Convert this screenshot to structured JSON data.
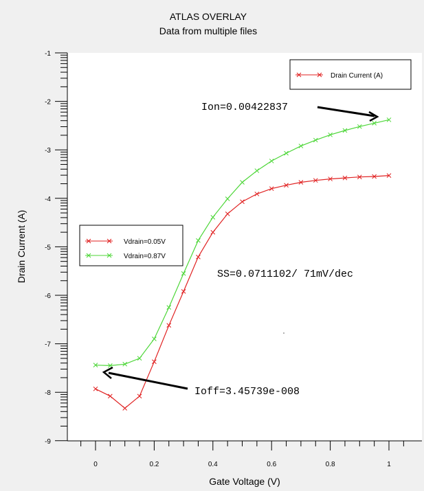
{
  "chart_data": {
    "type": "line",
    "title": "ATLAS OVERLAY",
    "subtitle": "Data from multiple files",
    "xlabel": "Gate Voltage (V)",
    "ylabel": "Drain Current (A)",
    "xlim": [
      -0.1,
      1.1
    ],
    "ylim": [
      -9,
      -1
    ],
    "xticks": [
      0,
      0.2,
      0.4,
      0.6,
      0.8,
      1
    ],
    "xtick_labels": [
      "0",
      "0.2",
      "0.4",
      "0.6",
      "0.8",
      "1"
    ],
    "yticks": [
      -1,
      -2,
      -3,
      -4,
      -5,
      -6,
      -7,
      -8,
      -9
    ],
    "ytick_labels": [
      "-1",
      "-2",
      "-3",
      "-4",
      "-5",
      "-6",
      "-7",
      "-8",
      "-9"
    ],
    "grid": false,
    "legend_top": {
      "label": "Drain Current (A)",
      "color": "#e02020",
      "placement": "top-right"
    },
    "legend_series_placement": "middle-left",
    "series": [
      {
        "name": "Vdrain=0.05V",
        "color": "#e02020",
        "x": [
          0,
          0.05,
          0.1,
          0.15,
          0.2,
          0.25,
          0.3,
          0.35,
          0.4,
          0.45,
          0.5,
          0.55,
          0.6,
          0.65,
          0.7,
          0.75,
          0.8,
          0.85,
          0.9,
          0.95,
          1
        ],
        "y": [
          -7.93,
          -8.08,
          -8.33,
          -8.08,
          -7.37,
          -6.62,
          -5.92,
          -5.21,
          -4.7,
          -4.32,
          -4.07,
          -3.91,
          -3.8,
          -3.73,
          -3.67,
          -3.63,
          -3.6,
          -3.58,
          -3.56,
          -3.55,
          -3.53
        ]
      },
      {
        "name": "Vdrain=0.87V",
        "color": "#4cd637",
        "x": [
          0,
          0.05,
          0.1,
          0.15,
          0.2,
          0.25,
          0.3,
          0.35,
          0.4,
          0.45,
          0.5,
          0.55,
          0.6,
          0.65,
          0.7,
          0.75,
          0.8,
          0.85,
          0.9,
          0.95,
          1
        ],
        "y": [
          -7.44,
          -7.45,
          -7.42,
          -7.3,
          -6.9,
          -6.25,
          -5.55,
          -4.87,
          -4.39,
          -4.01,
          -3.67,
          -3.43,
          -3.23,
          -3.07,
          -2.92,
          -2.8,
          -2.69,
          -2.6,
          -2.52,
          -2.45,
          -2.38
        ]
      }
    ],
    "annotations": [
      {
        "text": "Ion=0.00422837",
        "arrow_to": [
          0.98,
          -2.4
        ]
      },
      {
        "text": "SS=0.0711102/ 71mV/dec"
      },
      {
        "text": "Ioff=3.45739e-008",
        "arrow_to": [
          0.02,
          -7.5
        ]
      }
    ]
  }
}
